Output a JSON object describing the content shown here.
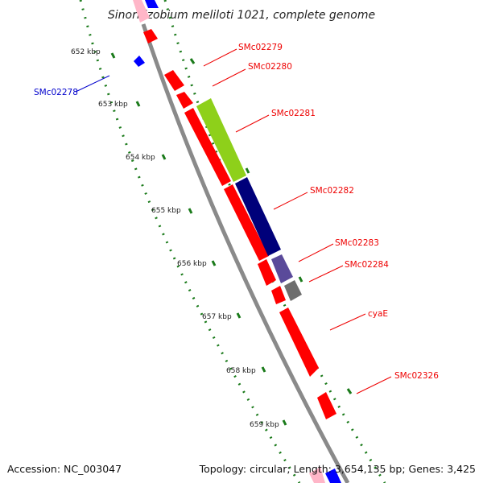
{
  "title": "Sinorhizobium meliloti 1021, complete genome",
  "footer": {
    "accession": "Accession: NC_003047",
    "summary": "Topology: circular; Length: 3,654,135 bp; Genes: 3,425"
  },
  "ticks": [
    {
      "label": "652 kbp"
    },
    {
      "label": "653 kbp"
    },
    {
      "label": "654 kbp"
    },
    {
      "label": "655 kbp"
    },
    {
      "label": "656 kbp"
    },
    {
      "label": "657 kbp"
    },
    {
      "label": "658 kbp"
    },
    {
      "label": "659 kbp"
    }
  ],
  "genes": [
    {
      "label": "SMc02278",
      "color": "#0000cc"
    },
    {
      "label": "SMc02279",
      "color": "#ee0000"
    },
    {
      "label": "SMc02280",
      "color": "#ee0000"
    },
    {
      "label": "SMc02281",
      "color": "#ee0000"
    },
    {
      "label": "SMc02282",
      "color": "#ee0000"
    },
    {
      "label": "SMc02283",
      "color": "#ee0000"
    },
    {
      "label": "SMc02284",
      "color": "#ee0000"
    },
    {
      "label": "cyaE",
      "color": "#ee0000"
    },
    {
      "label": "SMc02326",
      "color": "#ee0000"
    }
  ],
  "colors": {
    "cds_red": "#ff0000",
    "cds_blue": "#0000ff",
    "lime": "#8ed01a",
    "navy": "#00007a",
    "slate": "#5a4a9a",
    "gray": "#6e6e6e",
    "backbone": "#8a8a8a",
    "tick_green": "#1a7a1a"
  }
}
